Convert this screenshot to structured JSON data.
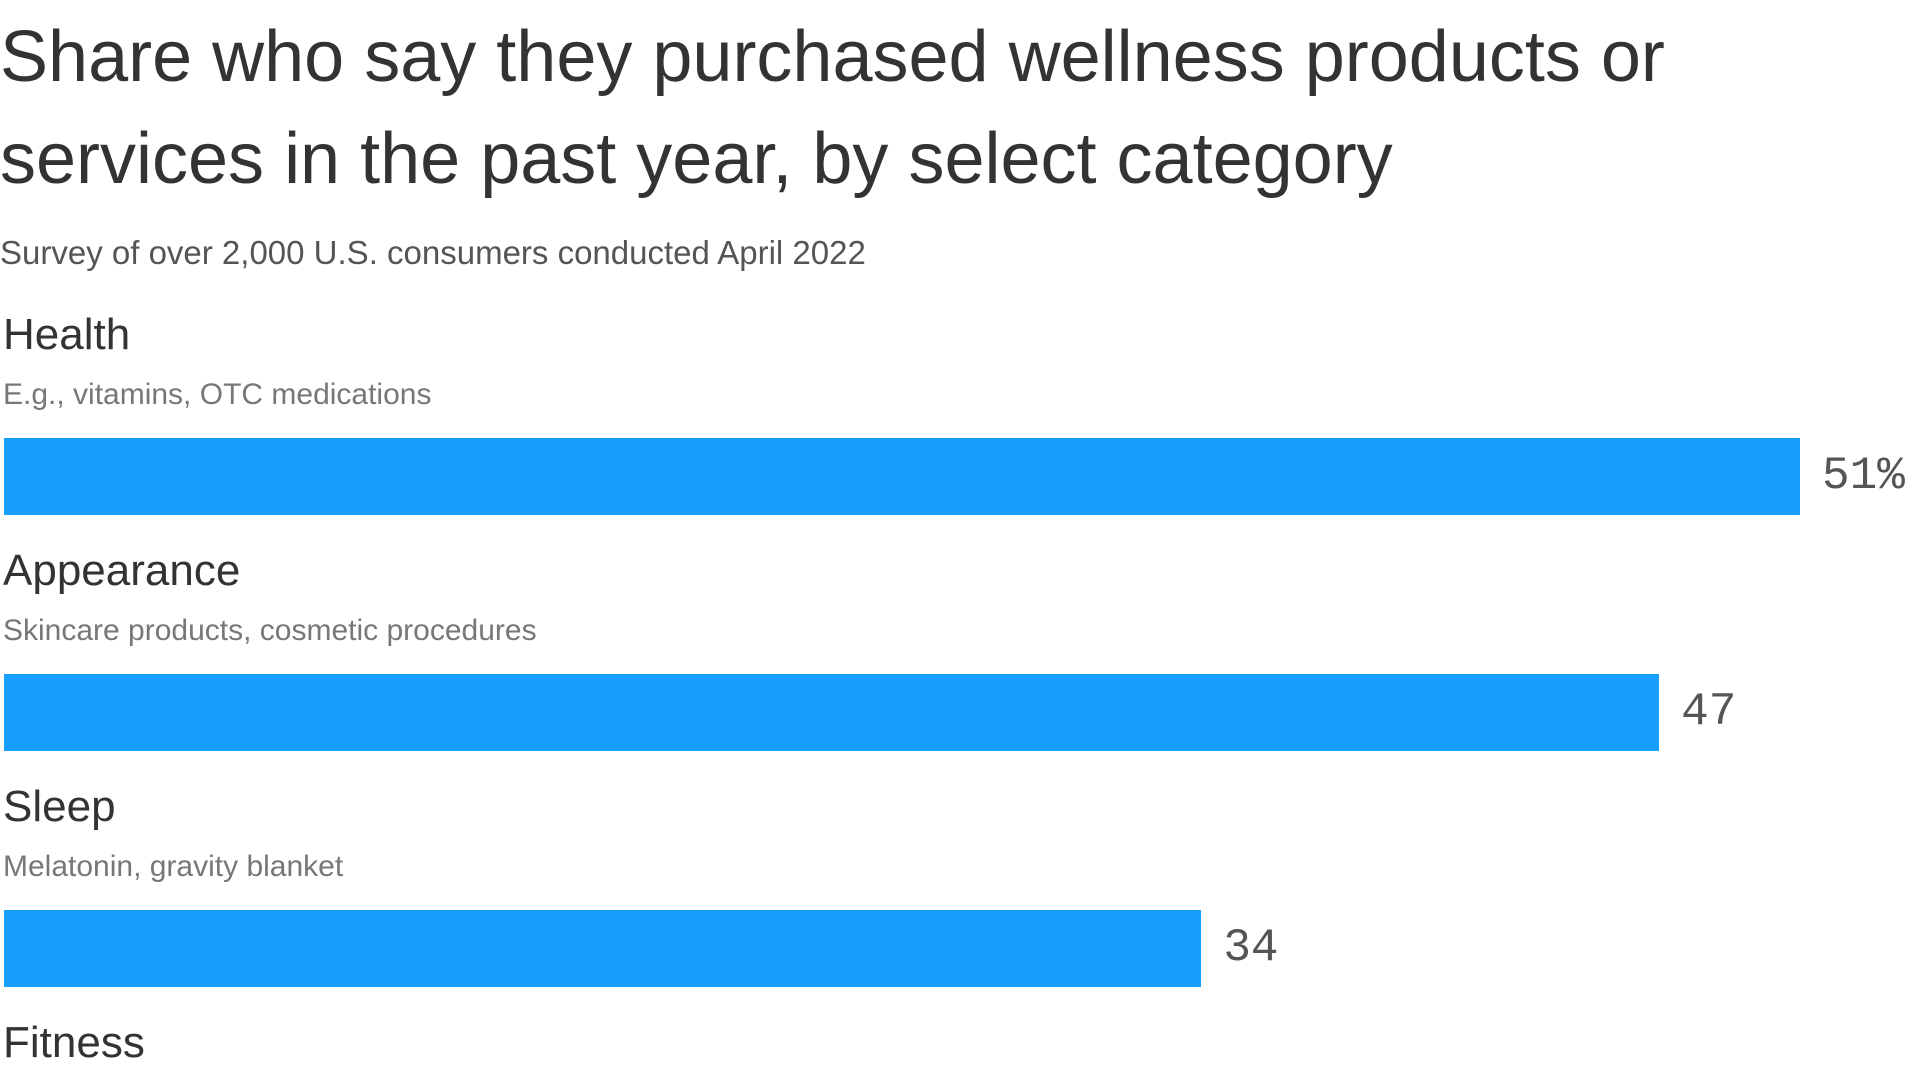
{
  "chart_data": {
    "type": "bar",
    "title": "Share who say they purchased wellness products or services in the past year, by select category",
    "subtitle": "Survey of over 2,000 U.S. consumers conducted April 2022",
    "categories": [
      "Health",
      "Appearance",
      "Sleep",
      "Fitness"
    ],
    "descriptions": [
      "E.g., vitamins, OTC medications",
      "Skincare products, cosmetic procedures",
      "Melatonin, gravity blanket",
      null
    ],
    "values": [
      51,
      47,
      34,
      null
    ],
    "value_labels": [
      "51%",
      "47",
      "34",
      null
    ],
    "color": "#169ffd",
    "xlim": [
      0,
      51
    ]
  }
}
